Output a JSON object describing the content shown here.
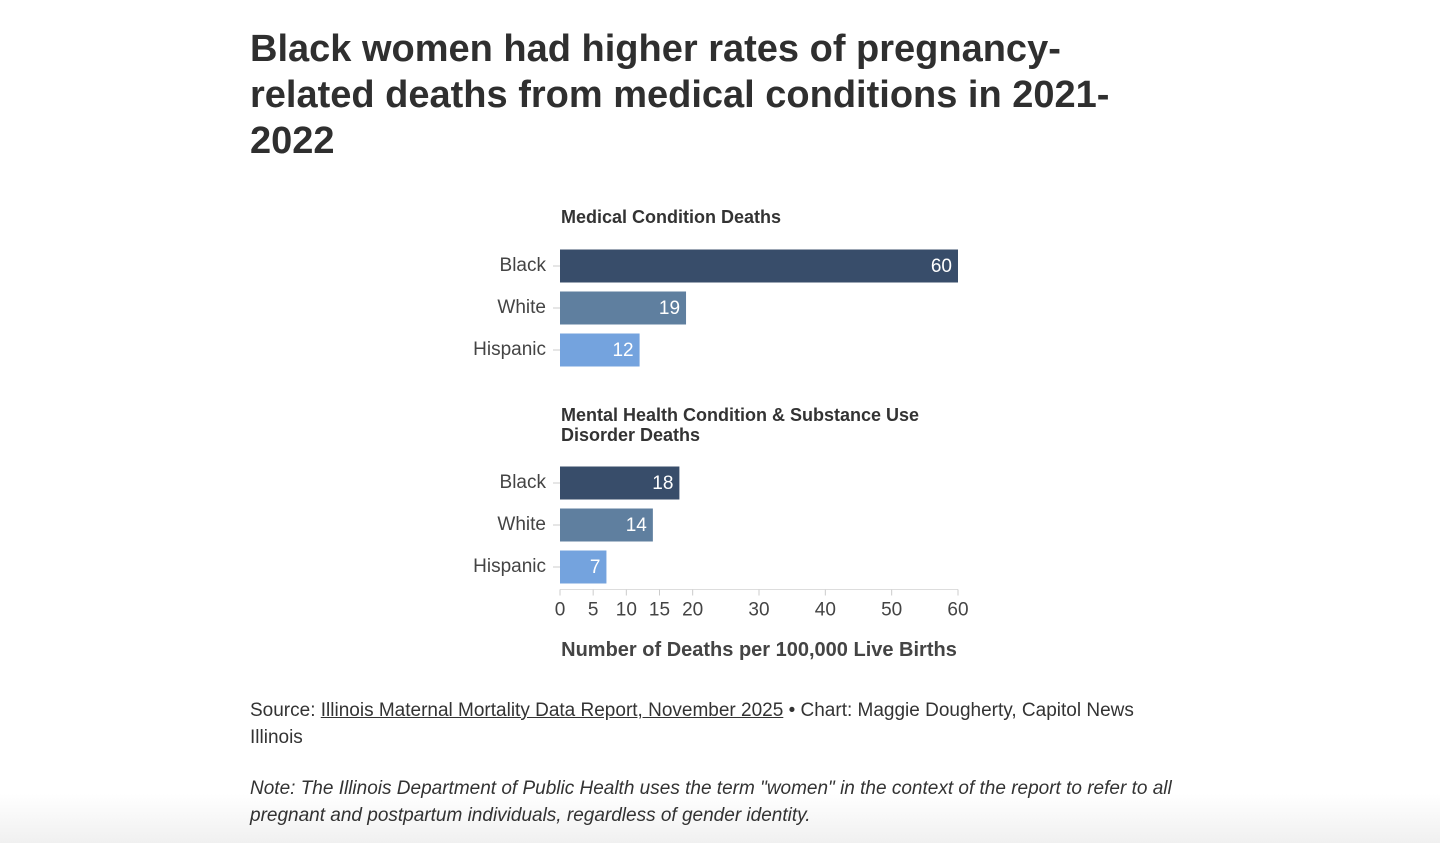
{
  "title": "Black women had higher rates of pregnancy-related deaths from medical conditions in 2021-2022",
  "chart_data": [
    {
      "type": "bar",
      "orientation": "horizontal",
      "title": "Medical Condition Deaths",
      "categories": [
        "Black",
        "White",
        "Hispanic"
      ],
      "values": [
        60,
        19,
        12
      ],
      "colors": [
        "#384d6a",
        "#5f7f9f",
        "#74a3de"
      ],
      "xlim": [
        0,
        60
      ]
    },
    {
      "type": "bar",
      "orientation": "horizontal",
      "title": "Mental Health Condition & Substance Use Disorder Deaths",
      "categories": [
        "Black",
        "White",
        "Hispanic"
      ],
      "values": [
        18,
        14,
        7
      ],
      "colors": [
        "#384d6a",
        "#5f7f9f",
        "#74a3de"
      ],
      "xlim": [
        0,
        60
      ],
      "xticks": [
        0,
        5,
        10,
        15,
        20,
        30,
        40,
        50,
        60
      ],
      "xlabel": "Number of Deaths per 100,000 Live Births"
    }
  ],
  "source": {
    "prefix": "Source:",
    "link": "Illinois Maternal Mortality Data Report, November 2025",
    "suffix": "• Chart: Maggie Dougherty, Capitol News Illinois"
  },
  "note": "Note: The Illinois Department of Public Health uses the term \"women\" in the context of the report to refer to all pregnant and postpartum individuals, regardless of gender identity."
}
